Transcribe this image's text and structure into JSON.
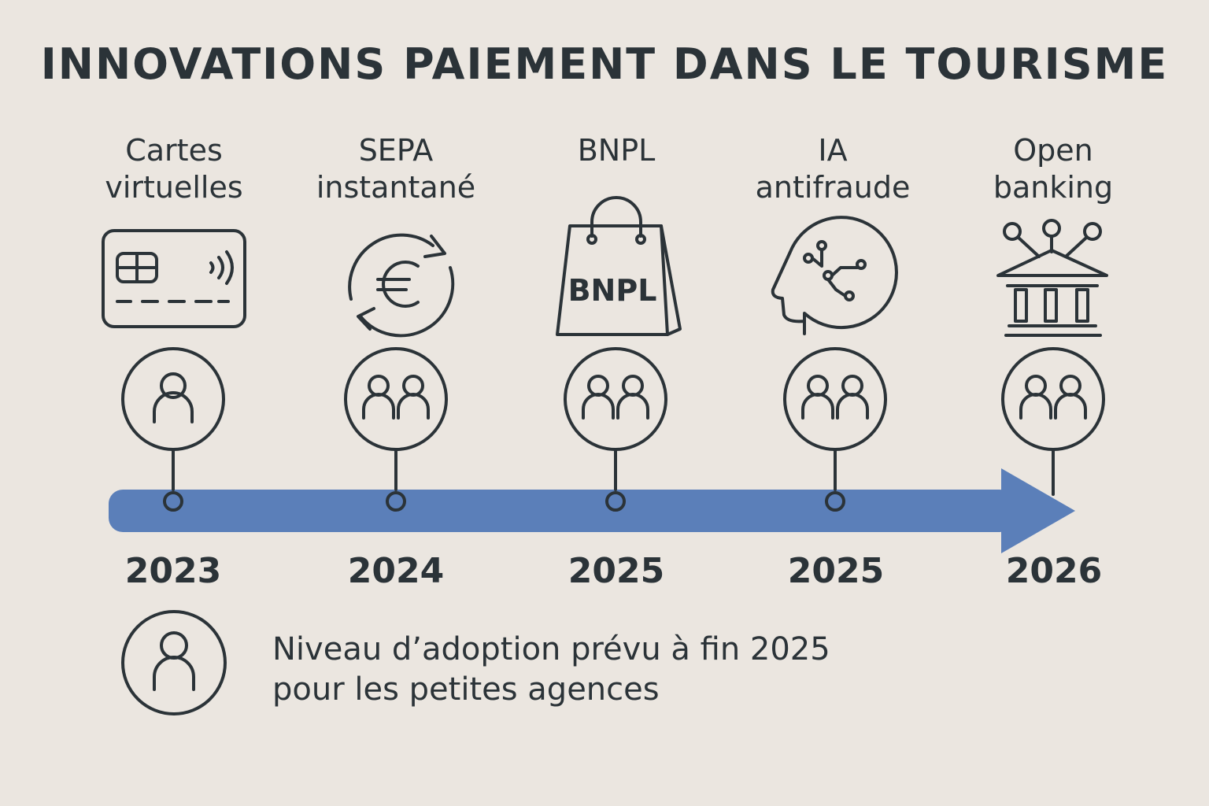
{
  "title": "INNOVATIONS PAIEMENT DANS LE TOURISME",
  "colors": {
    "background": "#ebe6e0",
    "arrow": "#5b7fb9",
    "ink": "#2b3338"
  },
  "milestones": [
    {
      "label_lines": [
        "Cartes",
        "virtuelles"
      ],
      "year": "2023",
      "icon": "credit-card-icon",
      "adoption_icon": "single-person-icon"
    },
    {
      "label_lines": [
        "SEPA",
        "instantané"
      ],
      "year": "2024",
      "icon": "euro-exchange-icon",
      "adoption_icon": "two-persons-icon"
    },
    {
      "label_lines": [
        "BNPL"
      ],
      "year": "2025",
      "icon": "shopping-bag-icon",
      "icon_text": "BNPL",
      "adoption_icon": "two-persons-icon"
    },
    {
      "label_lines": [
        "IA",
        "antifraude"
      ],
      "year": "2025",
      "icon": "ai-head-icon",
      "adoption_icon": "two-persons-icon"
    },
    {
      "label_lines": [
        "Open",
        "banking"
      ],
      "year": "2026",
      "icon": "bank-network-icon",
      "adoption_icon": "two-persons-icon"
    }
  ],
  "legend": {
    "icon": "single-person-icon",
    "lines": [
      "Niveau d’adoption prévu à fin 2025",
      "pour les petites agences"
    ]
  }
}
